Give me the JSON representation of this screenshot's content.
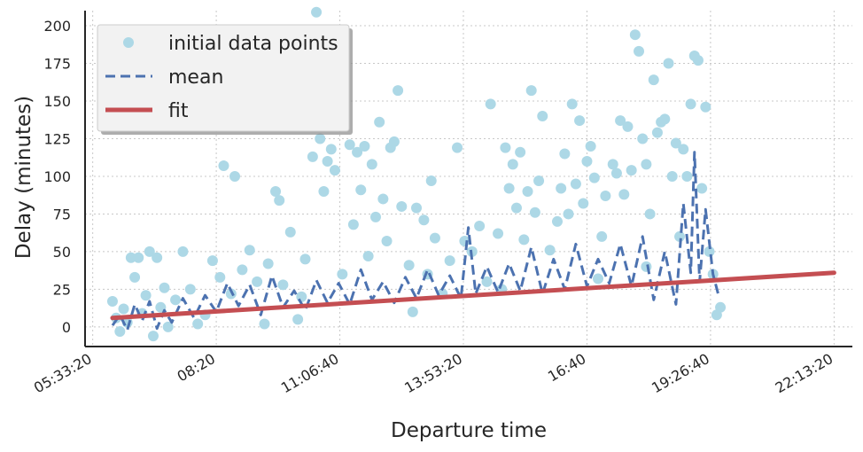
{
  "chart_data": {
    "type": "scatter",
    "xlabel": "Departure time",
    "ylabel": "Delay (minutes)",
    "xlim": [
      "05:23:00",
      "22:38:00"
    ],
    "ylim": [
      -13,
      210
    ],
    "xticks": [
      "05:33:20",
      "08:20",
      "11:06:40",
      "13:53:20",
      "16:40",
      "19:26:40",
      "22:13:20"
    ],
    "yticks": [
      0,
      25,
      50,
      75,
      100,
      125,
      150,
      175,
      200
    ],
    "grid": true,
    "legend_position": "top-left",
    "colors": {
      "scatter": "#add8e6",
      "mean": "#4c72b0",
      "fit": "#c44e52"
    },
    "series": [
      {
        "name": "initial data points",
        "kind": "scatter",
        "points": [
          [
            "06:00",
            17
          ],
          [
            "06:05",
            6
          ],
          [
            "06:10",
            -3
          ],
          [
            "06:15",
            12
          ],
          [
            "06:20",
            3
          ],
          [
            "06:25",
            46
          ],
          [
            "06:30",
            33
          ],
          [
            "06:35",
            46
          ],
          [
            "06:40",
            9
          ],
          [
            "06:45",
            21
          ],
          [
            "06:50",
            50
          ],
          [
            "06:55",
            -6
          ],
          [
            "07:00",
            46
          ],
          [
            "07:05",
            13
          ],
          [
            "07:10",
            26
          ],
          [
            "07:15",
            0
          ],
          [
            "07:25",
            18
          ],
          [
            "07:35",
            50
          ],
          [
            "07:45",
            25
          ],
          [
            "07:55",
            2
          ],
          [
            "08:05",
            8
          ],
          [
            "08:15",
            44
          ],
          [
            "08:25",
            33
          ],
          [
            "08:30",
            107
          ],
          [
            "08:40",
            22
          ],
          [
            "08:45",
            100
          ],
          [
            "08:55",
            38
          ],
          [
            "09:05",
            51
          ],
          [
            "09:15",
            30
          ],
          [
            "09:25",
            2
          ],
          [
            "09:30",
            42
          ],
          [
            "09:40",
            90
          ],
          [
            "09:45",
            84
          ],
          [
            "09:50",
            28
          ],
          [
            "10:00",
            63
          ],
          [
            "10:10",
            5
          ],
          [
            "10:20",
            45
          ],
          [
            "10:30",
            113
          ],
          [
            "10:35",
            209
          ],
          [
            "10:40",
            125
          ],
          [
            "10:45",
            90
          ],
          [
            "10:50",
            110
          ],
          [
            "10:55",
            118
          ],
          [
            "11:00",
            104
          ],
          [
            "11:10",
            35
          ],
          [
            "11:20",
            121
          ],
          [
            "11:25",
            68
          ],
          [
            "11:30",
            116
          ],
          [
            "11:35",
            91
          ],
          [
            "11:40",
            120
          ],
          [
            "11:45",
            47
          ],
          [
            "11:50",
            108
          ],
          [
            "11:55",
            73
          ],
          [
            "12:00",
            136
          ],
          [
            "12:05",
            85
          ],
          [
            "12:10",
            57
          ],
          [
            "12:15",
            119
          ],
          [
            "12:20",
            123
          ],
          [
            "12:25",
            157
          ],
          [
            "12:30",
            80
          ],
          [
            "12:40",
            41
          ],
          [
            "12:50",
            79
          ],
          [
            "13:00",
            71
          ],
          [
            "13:05",
            35
          ],
          [
            "13:10",
            97
          ],
          [
            "13:15",
            59
          ],
          [
            "13:25",
            22
          ],
          [
            "13:35",
            44
          ],
          [
            "13:45",
            119
          ],
          [
            "13:55",
            57
          ],
          [
            "14:05",
            50
          ],
          [
            "14:15",
            67
          ],
          [
            "14:25",
            30
          ],
          [
            "14:30",
            148
          ],
          [
            "14:40",
            62
          ],
          [
            "14:50",
            119
          ],
          [
            "14:55",
            92
          ],
          [
            "15:00",
            108
          ],
          [
            "15:05",
            79
          ],
          [
            "15:10",
            116
          ],
          [
            "15:15",
            58
          ],
          [
            "15:20",
            90
          ],
          [
            "15:25",
            157
          ],
          [
            "15:30",
            76
          ],
          [
            "15:35",
            97
          ],
          [
            "15:40",
            140
          ],
          [
            "15:50",
            51
          ],
          [
            "16:00",
            70
          ],
          [
            "16:05",
            92
          ],
          [
            "16:10",
            115
          ],
          [
            "16:15",
            75
          ],
          [
            "16:20",
            148
          ],
          [
            "16:25",
            95
          ],
          [
            "16:30",
            137
          ],
          [
            "16:35",
            82
          ],
          [
            "16:40",
            110
          ],
          [
            "16:45",
            120
          ],
          [
            "16:50",
            99
          ],
          [
            "17:00",
            60
          ],
          [
            "17:05",
            87
          ],
          [
            "17:15",
            108
          ],
          [
            "17:20",
            102
          ],
          [
            "17:25",
            137
          ],
          [
            "17:30",
            88
          ],
          [
            "17:35",
            133
          ],
          [
            "17:40",
            104
          ],
          [
            "17:45",
            194
          ],
          [
            "17:50",
            183
          ],
          [
            "17:55",
            125
          ],
          [
            "18:00",
            108
          ],
          [
            "18:05",
            75
          ],
          [
            "18:10",
            164
          ],
          [
            "18:15",
            129
          ],
          [
            "18:20",
            136
          ],
          [
            "18:25",
            138
          ],
          [
            "18:30",
            175
          ],
          [
            "18:35",
            100
          ],
          [
            "18:40",
            122
          ],
          [
            "18:45",
            60
          ],
          [
            "18:50",
            118
          ],
          [
            "18:55",
            100
          ],
          [
            "19:00",
            148
          ],
          [
            "19:05",
            180
          ],
          [
            "19:10",
            177
          ],
          [
            "19:15",
            92
          ],
          [
            "19:20",
            146
          ],
          [
            "19:25",
            50
          ],
          [
            "19:30",
            35
          ],
          [
            "19:35",
            8
          ],
          [
            "19:40",
            13
          ],
          [
            "12:45",
            10
          ],
          [
            "14:45",
            25
          ],
          [
            "16:55",
            32
          ],
          [
            "18:00",
            40
          ],
          [
            "10:15",
            20
          ]
        ]
      },
      {
        "name": "mean",
        "kind": "line",
        "points": [
          [
            "06:00",
            1
          ],
          [
            "06:10",
            8
          ],
          [
            "06:20",
            -2
          ],
          [
            "06:30",
            15
          ],
          [
            "06:40",
            4
          ],
          [
            "06:50",
            17
          ],
          [
            "07:00",
            -1
          ],
          [
            "07:10",
            11
          ],
          [
            "07:20",
            3
          ],
          [
            "07:35",
            19
          ],
          [
            "07:50",
            6
          ],
          [
            "08:05",
            21
          ],
          [
            "08:20",
            10
          ],
          [
            "08:35",
            29
          ],
          [
            "08:50",
            14
          ],
          [
            "09:05",
            28
          ],
          [
            "09:20",
            8
          ],
          [
            "09:35",
            34
          ],
          [
            "09:50",
            13
          ],
          [
            "10:05",
            24
          ],
          [
            "10:20",
            11
          ],
          [
            "10:35",
            31
          ],
          [
            "10:50",
            16
          ],
          [
            "11:05",
            29
          ],
          [
            "11:20",
            15
          ],
          [
            "11:35",
            38
          ],
          [
            "11:50",
            18
          ],
          [
            "12:05",
            30
          ],
          [
            "12:20",
            16
          ],
          [
            "12:35",
            33
          ],
          [
            "12:50",
            19
          ],
          [
            "13:05",
            38
          ],
          [
            "13:20",
            21
          ],
          [
            "13:35",
            34
          ],
          [
            "13:50",
            19
          ],
          [
            "14:00",
            66
          ],
          [
            "14:10",
            22
          ],
          [
            "14:25",
            40
          ],
          [
            "14:40",
            23
          ],
          [
            "14:55",
            42
          ],
          [
            "15:10",
            24
          ],
          [
            "15:25",
            53
          ],
          [
            "15:40",
            22
          ],
          [
            "15:55",
            45
          ],
          [
            "16:10",
            25
          ],
          [
            "16:25",
            55
          ],
          [
            "16:40",
            27
          ],
          [
            "16:55",
            45
          ],
          [
            "17:10",
            29
          ],
          [
            "17:25",
            55
          ],
          [
            "17:40",
            27
          ],
          [
            "17:55",
            60
          ],
          [
            "18:10",
            18
          ],
          [
            "18:25",
            50
          ],
          [
            "18:40",
            15
          ],
          [
            "18:50",
            82
          ],
          [
            "19:00",
            36
          ],
          [
            "19:05",
            116
          ],
          [
            "19:12",
            30
          ],
          [
            "19:20",
            78
          ],
          [
            "19:30",
            35
          ],
          [
            "19:38",
            20
          ]
        ]
      },
      {
        "name": "fit",
        "kind": "line",
        "points": [
          [
            "06:00",
            6
          ],
          [
            "22:13:20",
            36
          ]
        ]
      }
    ]
  }
}
